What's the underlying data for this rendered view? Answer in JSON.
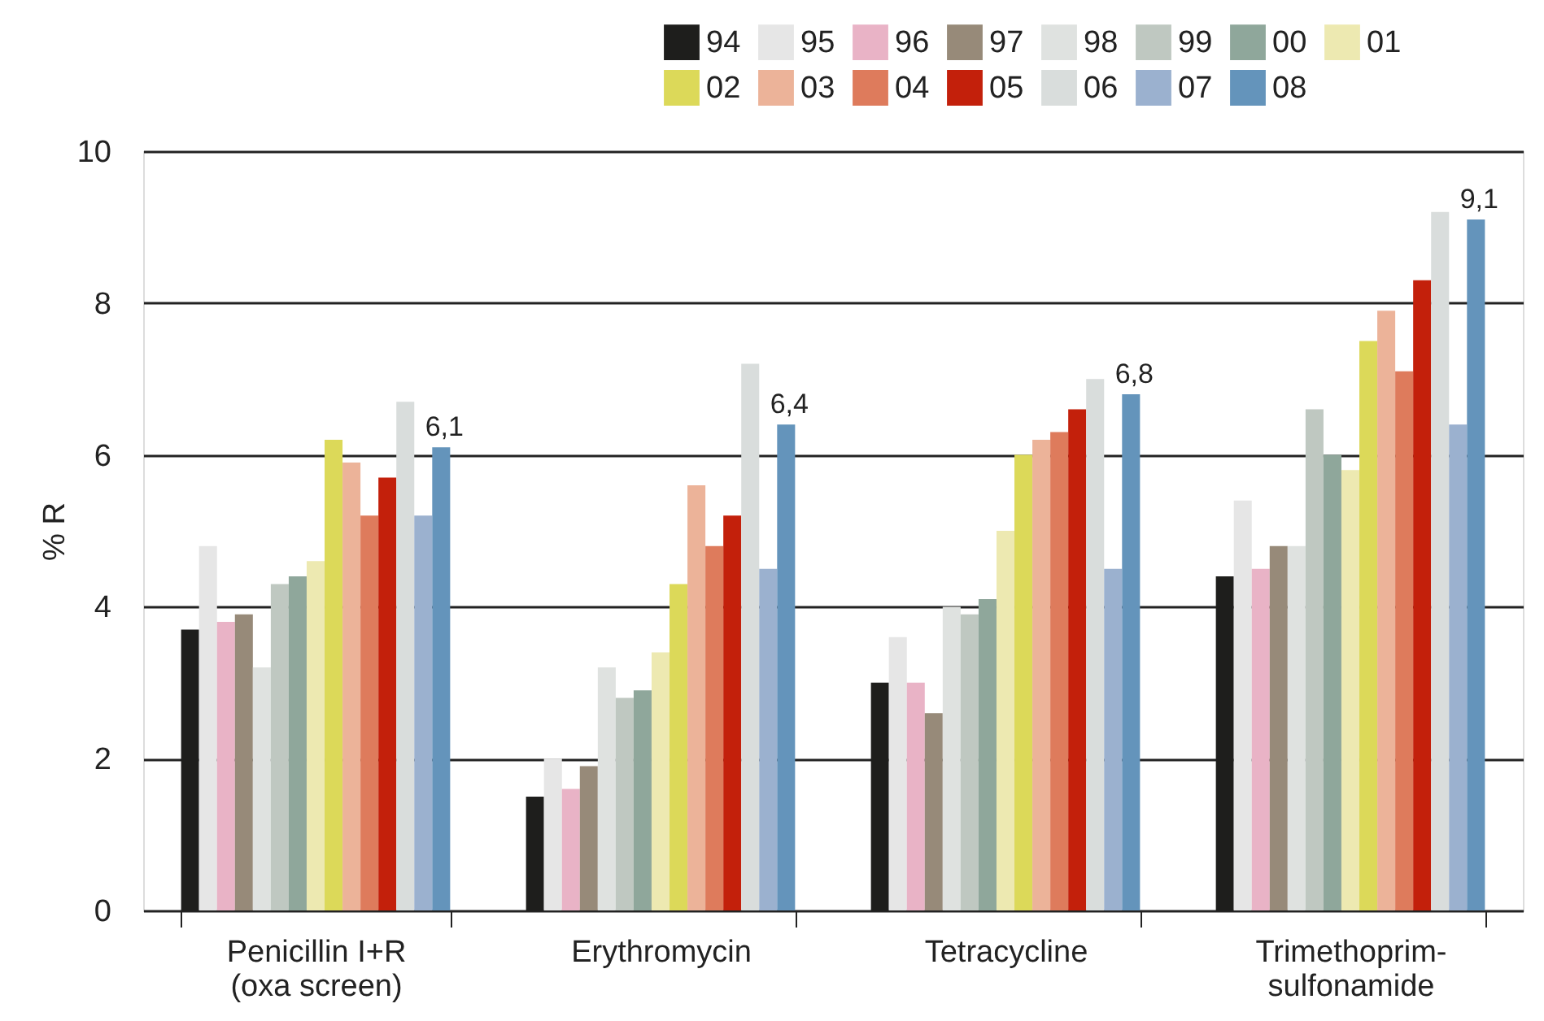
{
  "chart_data": {
    "type": "bar",
    "ylabel": "% R",
    "categories": [
      "Penicillin I+R\n(oxa screen)",
      "Erythromycin",
      "Tetracycline",
      "Trimethoprim-\nsulfonamide"
    ],
    "ylim": [
      0,
      10
    ],
    "yticks": [
      0,
      2,
      4,
      6,
      8,
      10
    ],
    "grid": "y",
    "legend": "top right",
    "series": [
      {
        "name": "94",
        "color": "#1e1e1c",
        "values": [
          3.7,
          1.5,
          3.0,
          4.4
        ]
      },
      {
        "name": "95",
        "color": "#e6e6e6",
        "values": [
          4.8,
          2.0,
          3.6,
          5.4
        ]
      },
      {
        "name": "96",
        "color": "#e9b3c6",
        "values": [
          3.8,
          1.6,
          3.0,
          4.5
        ]
      },
      {
        "name": "97",
        "color": "#978a79",
        "values": [
          3.9,
          1.9,
          2.6,
          4.8
        ]
      },
      {
        "name": "98",
        "color": "#dfe2e0",
        "values": [
          3.2,
          3.2,
          4.0,
          4.8
        ]
      },
      {
        "name": "99",
        "color": "#bfc8c1",
        "values": [
          4.3,
          2.8,
          3.9,
          6.6
        ]
      },
      {
        "name": "00",
        "color": "#8fa79b",
        "values": [
          4.4,
          2.9,
          4.1,
          6.0
        ]
      },
      {
        "name": "01",
        "color": "#ede9b1",
        "values": [
          4.6,
          3.4,
          5.0,
          5.8
        ]
      },
      {
        "name": "02",
        "color": "#dcd959",
        "values": [
          6.2,
          4.3,
          6.0,
          7.5
        ]
      },
      {
        "name": "03",
        "color": "#ecb399",
        "values": [
          5.9,
          5.6,
          6.2,
          7.9
        ]
      },
      {
        "name": "04",
        "color": "#de7b5c",
        "values": [
          5.2,
          4.8,
          6.3,
          7.1
        ]
      },
      {
        "name": "05",
        "color": "#c3200b",
        "values": [
          5.7,
          5.2,
          6.6,
          8.3
        ]
      },
      {
        "name": "06",
        "color": "#d9dddc",
        "values": [
          6.7,
          7.2,
          7.0,
          9.2
        ]
      },
      {
        "name": "07",
        "color": "#9bb1cf",
        "values": [
          5.2,
          4.5,
          4.5,
          6.4
        ]
      },
      {
        "name": "08",
        "color": "#6494bb",
        "values": [
          6.1,
          6.4,
          6.8,
          9.1
        ],
        "value_labels": [
          "6,1",
          "6,4",
          "6,8",
          "9,1"
        ]
      }
    ]
  }
}
